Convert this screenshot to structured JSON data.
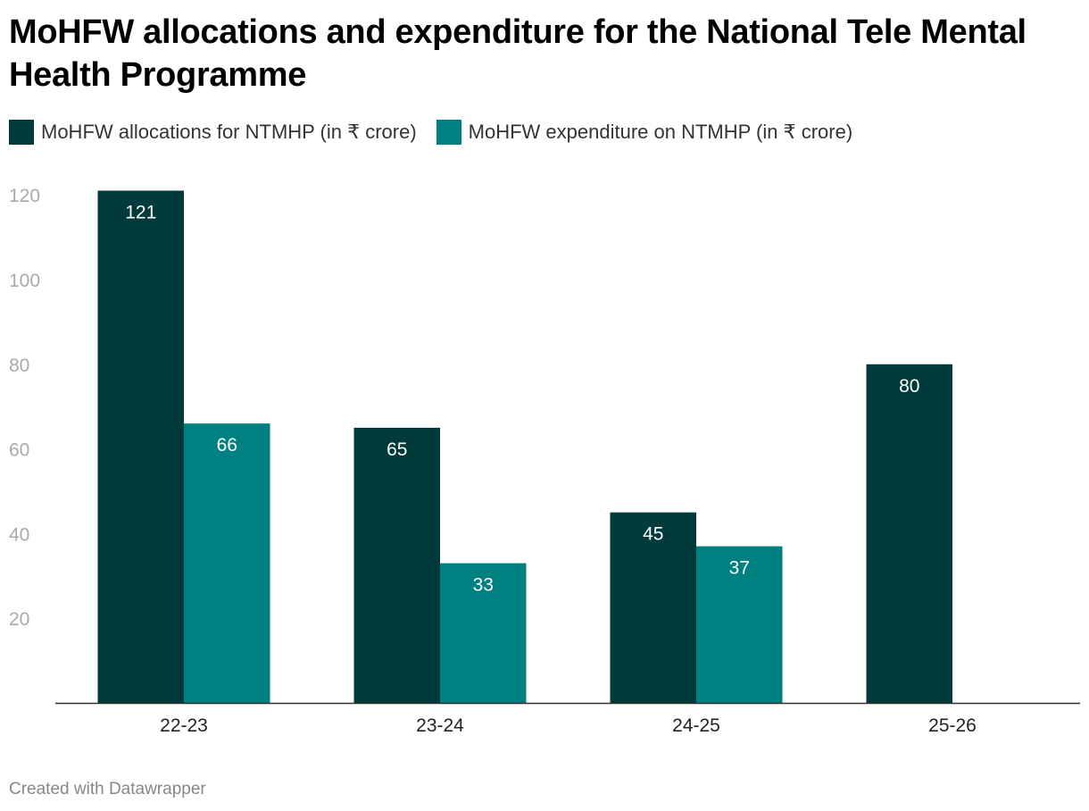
{
  "chart_data": {
    "type": "bar",
    "title": "MoHFW allocations and expenditure for the National Tele Mental Health Programme",
    "xlabel": "",
    "ylabel": "",
    "categories": [
      "22-23",
      "23-24",
      "24-25",
      "25-26"
    ],
    "series": [
      {
        "name": "MoHFW allocations for NTMHP (in ₹ crore)",
        "color": "#003a3a",
        "values": [
          121,
          65,
          45,
          80
        ]
      },
      {
        "name": "MoHFW expenditure on NTMHP (in ₹ crore)",
        "color": "#008080",
        "values": [
          66,
          33,
          37,
          null
        ]
      }
    ],
    "ylim": [
      0,
      120
    ],
    "yticks": [
      20,
      40,
      60,
      80,
      100,
      120
    ],
    "grid": false,
    "legend_position": "top-left",
    "data_labels": true
  },
  "footer": "Created with Datawrapper"
}
